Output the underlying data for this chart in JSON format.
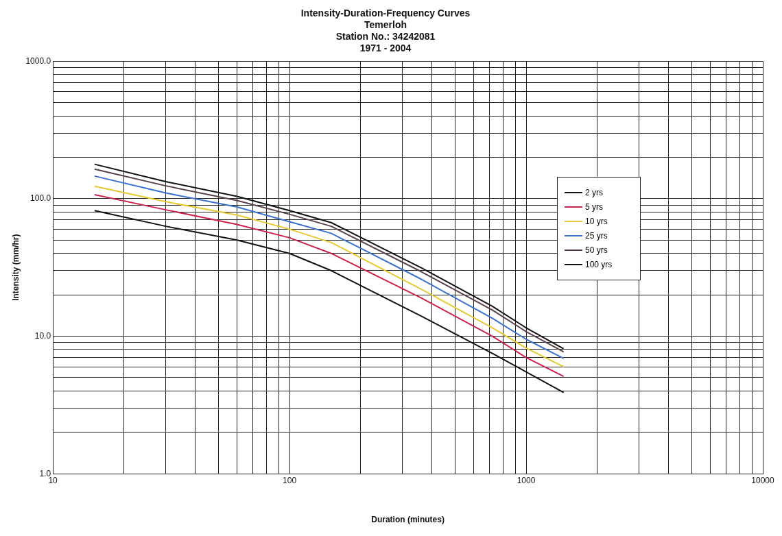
{
  "chart_data": {
    "type": "line",
    "title": "Intensity-Duration-Frequency Curves",
    "subtitle": "Temerloh\nStation No.: 34242081\n1971 - 2004",
    "xlabel": "Duration (minutes)",
    "ylabel": "Intensity (mm/hr)",
    "x": [
      15,
      30,
      60,
      100,
      150,
      360,
      720,
      1000,
      1440
    ],
    "series": [
      {
        "name": "2 yrs",
        "color": "#111111",
        "values": [
          82,
          63,
          50,
          40,
          30,
          14,
          7.5,
          5.5,
          3.9
        ]
      },
      {
        "name": "5 yrs",
        "color": "#c8234a",
        "values": [
          107,
          83,
          65,
          52,
          40,
          19,
          10,
          7,
          5.1
        ]
      },
      {
        "name": "10 yrs",
        "color": "#e8c832",
        "values": [
          123,
          95,
          76,
          60,
          48,
          22,
          11.5,
          8.2,
          6
        ]
      },
      {
        "name": "25 yrs",
        "color": "#3a6fd0",
        "values": [
          146,
          110,
          87,
          68,
          56,
          26,
          13.5,
          9.5,
          6.9
        ]
      },
      {
        "name": "50 yrs",
        "color": "#5a4048",
        "values": [
          164,
          124,
          97,
          77,
          63,
          29.5,
          15.5,
          10.8,
          7.7
        ]
      },
      {
        "name": "100 yrs",
        "color": "#111111",
        "values": [
          178,
          133,
          104,
          82,
          67,
          31.5,
          16.5,
          11.5,
          8.1
        ]
      }
    ],
    "log": "xy",
    "xlim": [
      10,
      10000
    ],
    "ylim": [
      1,
      1000
    ],
    "xticks": [
      10,
      {
        "value": 20,
        "label": null
      },
      {
        "value": 30,
        "label": null
      },
      {
        "value": 40,
        "label": null
      },
      {
        "value": 50,
        "label": null
      },
      {
        "value": 60,
        "label": null
      },
      {
        "value": 70,
        "label": null
      },
      {
        "value": 80,
        "label": null
      },
      {
        "value": 90,
        "label": null
      },
      100,
      {
        "value": 200,
        "label": null
      },
      {
        "value": 300,
        "label": null
      },
      {
        "value": 400,
        "label": null
      },
      {
        "value": 500,
        "label": null
      },
      {
        "value": 600,
        "label": null
      },
      {
        "value": 700,
        "label": null
      },
      {
        "value": 800,
        "label": null
      },
      {
        "value": 900,
        "label": null
      },
      1000,
      {
        "value": 2000,
        "label": null
      },
      {
        "value": 3000,
        "label": null
      },
      {
        "value": 4000,
        "label": null
      },
      {
        "value": 5000,
        "label": null
      },
      {
        "value": 6000,
        "label": null
      },
      {
        "value": 7000,
        "label": null
      },
      {
        "value": 8000,
        "label": null
      },
      {
        "value": 9000,
        "label": null
      },
      10000
    ],
    "yticks": [
      {
        "value": 1,
        "label": "1.0"
      },
      {
        "value": 2,
        "label": null
      },
      {
        "value": 3,
        "label": null
      },
      {
        "value": 4,
        "label": null
      },
      {
        "value": 5,
        "label": null
      },
      {
        "value": 6,
        "label": null
      },
      {
        "value": 7,
        "label": null
      },
      {
        "value": 8,
        "label": null
      },
      {
        "value": 9,
        "label": null
      },
      {
        "value": 10,
        "label": "10.0"
      },
      {
        "value": 20,
        "label": null
      },
      {
        "value": 30,
        "label": null
      },
      {
        "value": 40,
        "label": null
      },
      {
        "value": 50,
        "label": null
      },
      {
        "value": 60,
        "label": null
      },
      {
        "value": 70,
        "label": null
      },
      {
        "value": 80,
        "label": null
      },
      {
        "value": 90,
        "label": null
      },
      {
        "value": 100,
        "label": "100.0"
      },
      {
        "value": 200,
        "label": null
      },
      {
        "value": 300,
        "label": null
      },
      {
        "value": 400,
        "label": null
      },
      {
        "value": 500,
        "label": null
      },
      {
        "value": 600,
        "label": null
      },
      {
        "value": 700,
        "label": null
      },
      {
        "value": 800,
        "label": null
      },
      {
        "value": 900,
        "label": null
      },
      {
        "value": 1000,
        "label": "1000.0"
      }
    ],
    "grid": true,
    "legend": "right",
    "marker": "none",
    "line_style": "solid"
  }
}
